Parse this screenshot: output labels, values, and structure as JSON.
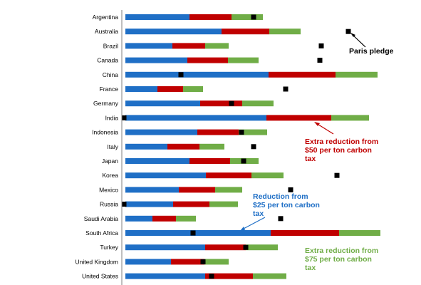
{
  "chart_data": {
    "type": "bar",
    "orientation": "horizontal",
    "stacked": true,
    "categories": [
      "Argentina",
      "Australia",
      "Brazil",
      "Canada",
      "China",
      "France",
      "Germany",
      "India",
      "Indonesia",
      "Italy",
      "Japan",
      "Korea",
      "Mexico",
      "Russia",
      "Saudi Arabia",
      "South Africa",
      "Turkey",
      "United Kingdom",
      "United States"
    ],
    "series": [
      {
        "color": "#1f6fc6",
        "values": [
          90,
          135,
          66,
          87,
          201,
          45,
          105,
          198,
          101,
          59,
          90,
          113,
          75,
          67,
          38,
          204,
          112,
          64,
          112
        ]
      },
      {
        "color": "#c00000",
        "values": [
          59,
          67,
          46,
          57,
          94,
          36,
          59,
          91,
          58,
          45,
          57,
          64,
          51,
          51,
          33,
          96,
          57,
          47,
          67
        ]
      },
      {
        "color": "#70ad47",
        "values": [
          44,
          44,
          33,
          43,
          59,
          28,
          44,
          53,
          40,
          35,
          40,
          45,
          38,
          40,
          28,
          58,
          45,
          34,
          47
        ]
      }
    ],
    "pledge_markers": [
      180,
      313,
      275,
      273,
      78,
      225,
      149,
      -2,
      163,
      180,
      166,
      297,
      232,
      -2,
      218,
      95,
      169,
      109,
      121
    ],
    "xlim": [
      -5,
      420
    ],
    "grid": false,
    "legend": "none",
    "annotations": {
      "paris": "Paris pledge",
      "red": "Extra reduction from\n$50 per ton carbon\ntax",
      "blue": "Reduction from\n$25 per ton carbon\ntax",
      "green": "Extra reduction from\n$75 per ton carbon\ntax"
    },
    "annotation_colors": {
      "paris": "#000000",
      "red": "#c00000",
      "blue": "#1f6fc6",
      "green": "#70ad47"
    }
  }
}
